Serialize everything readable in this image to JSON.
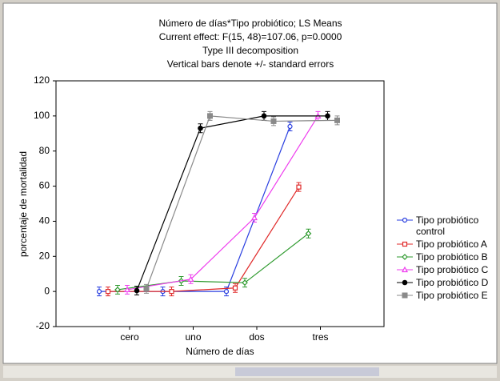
{
  "chart_data": {
    "type": "line",
    "title": "Número de días*Tipo probiótico; LS Means",
    "subtitle": [
      "Current effect: F(15, 48)=107.06, p=0.0000",
      "Type III decomposition",
      "Vertical bars denote +/- standard errors"
    ],
    "xlabel": "Número de días",
    "ylabel": "porcentaje de mortalidad",
    "categories": [
      "cero",
      "uno",
      "dos",
      "tres"
    ],
    "ylim": [
      -20,
      120
    ],
    "yticks": [
      -20,
      0,
      20,
      40,
      60,
      80,
      100,
      120
    ],
    "series": [
      {
        "name": "Tipo probiótico control",
        "color": "#2a3fe0",
        "marker": "circle",
        "values": [
          0,
          0,
          0,
          94
        ],
        "errors": [
          2.5,
          2.5,
          2.5,
          2.5
        ]
      },
      {
        "name": "Tipo probiótico A",
        "color": "#e02a2a",
        "marker": "square",
        "values": [
          0,
          0,
          2,
          59.5
        ],
        "errors": [
          2.5,
          2.5,
          2.5,
          2.5
        ]
      },
      {
        "name": "Tipo probiótico B",
        "color": "#2e9a2e",
        "marker": "diamond",
        "values": [
          1,
          6,
          5,
          33
        ],
        "errors": [
          2.5,
          2.5,
          2.5,
          2.5
        ]
      },
      {
        "name": "Tipo probiótico C",
        "color": "#ee3cee",
        "marker": "triangle",
        "values": [
          1,
          7,
          42,
          100
        ],
        "errors": [
          2.5,
          2.5,
          2.5,
          2.5
        ]
      },
      {
        "name": "Tipo probiótico D",
        "color": "#000000",
        "marker": "dot",
        "values": [
          0.5,
          93,
          100,
          100
        ],
        "errors": [
          2.5,
          2.5,
          2.5,
          2.5
        ]
      },
      {
        "name": "Tipo probiótico E",
        "color": "#8a8a8a",
        "marker": "block",
        "values": [
          1.5,
          100,
          97,
          97.5
        ],
        "errors": [
          2.5,
          2.5,
          2.5,
          2.5
        ]
      }
    ]
  }
}
